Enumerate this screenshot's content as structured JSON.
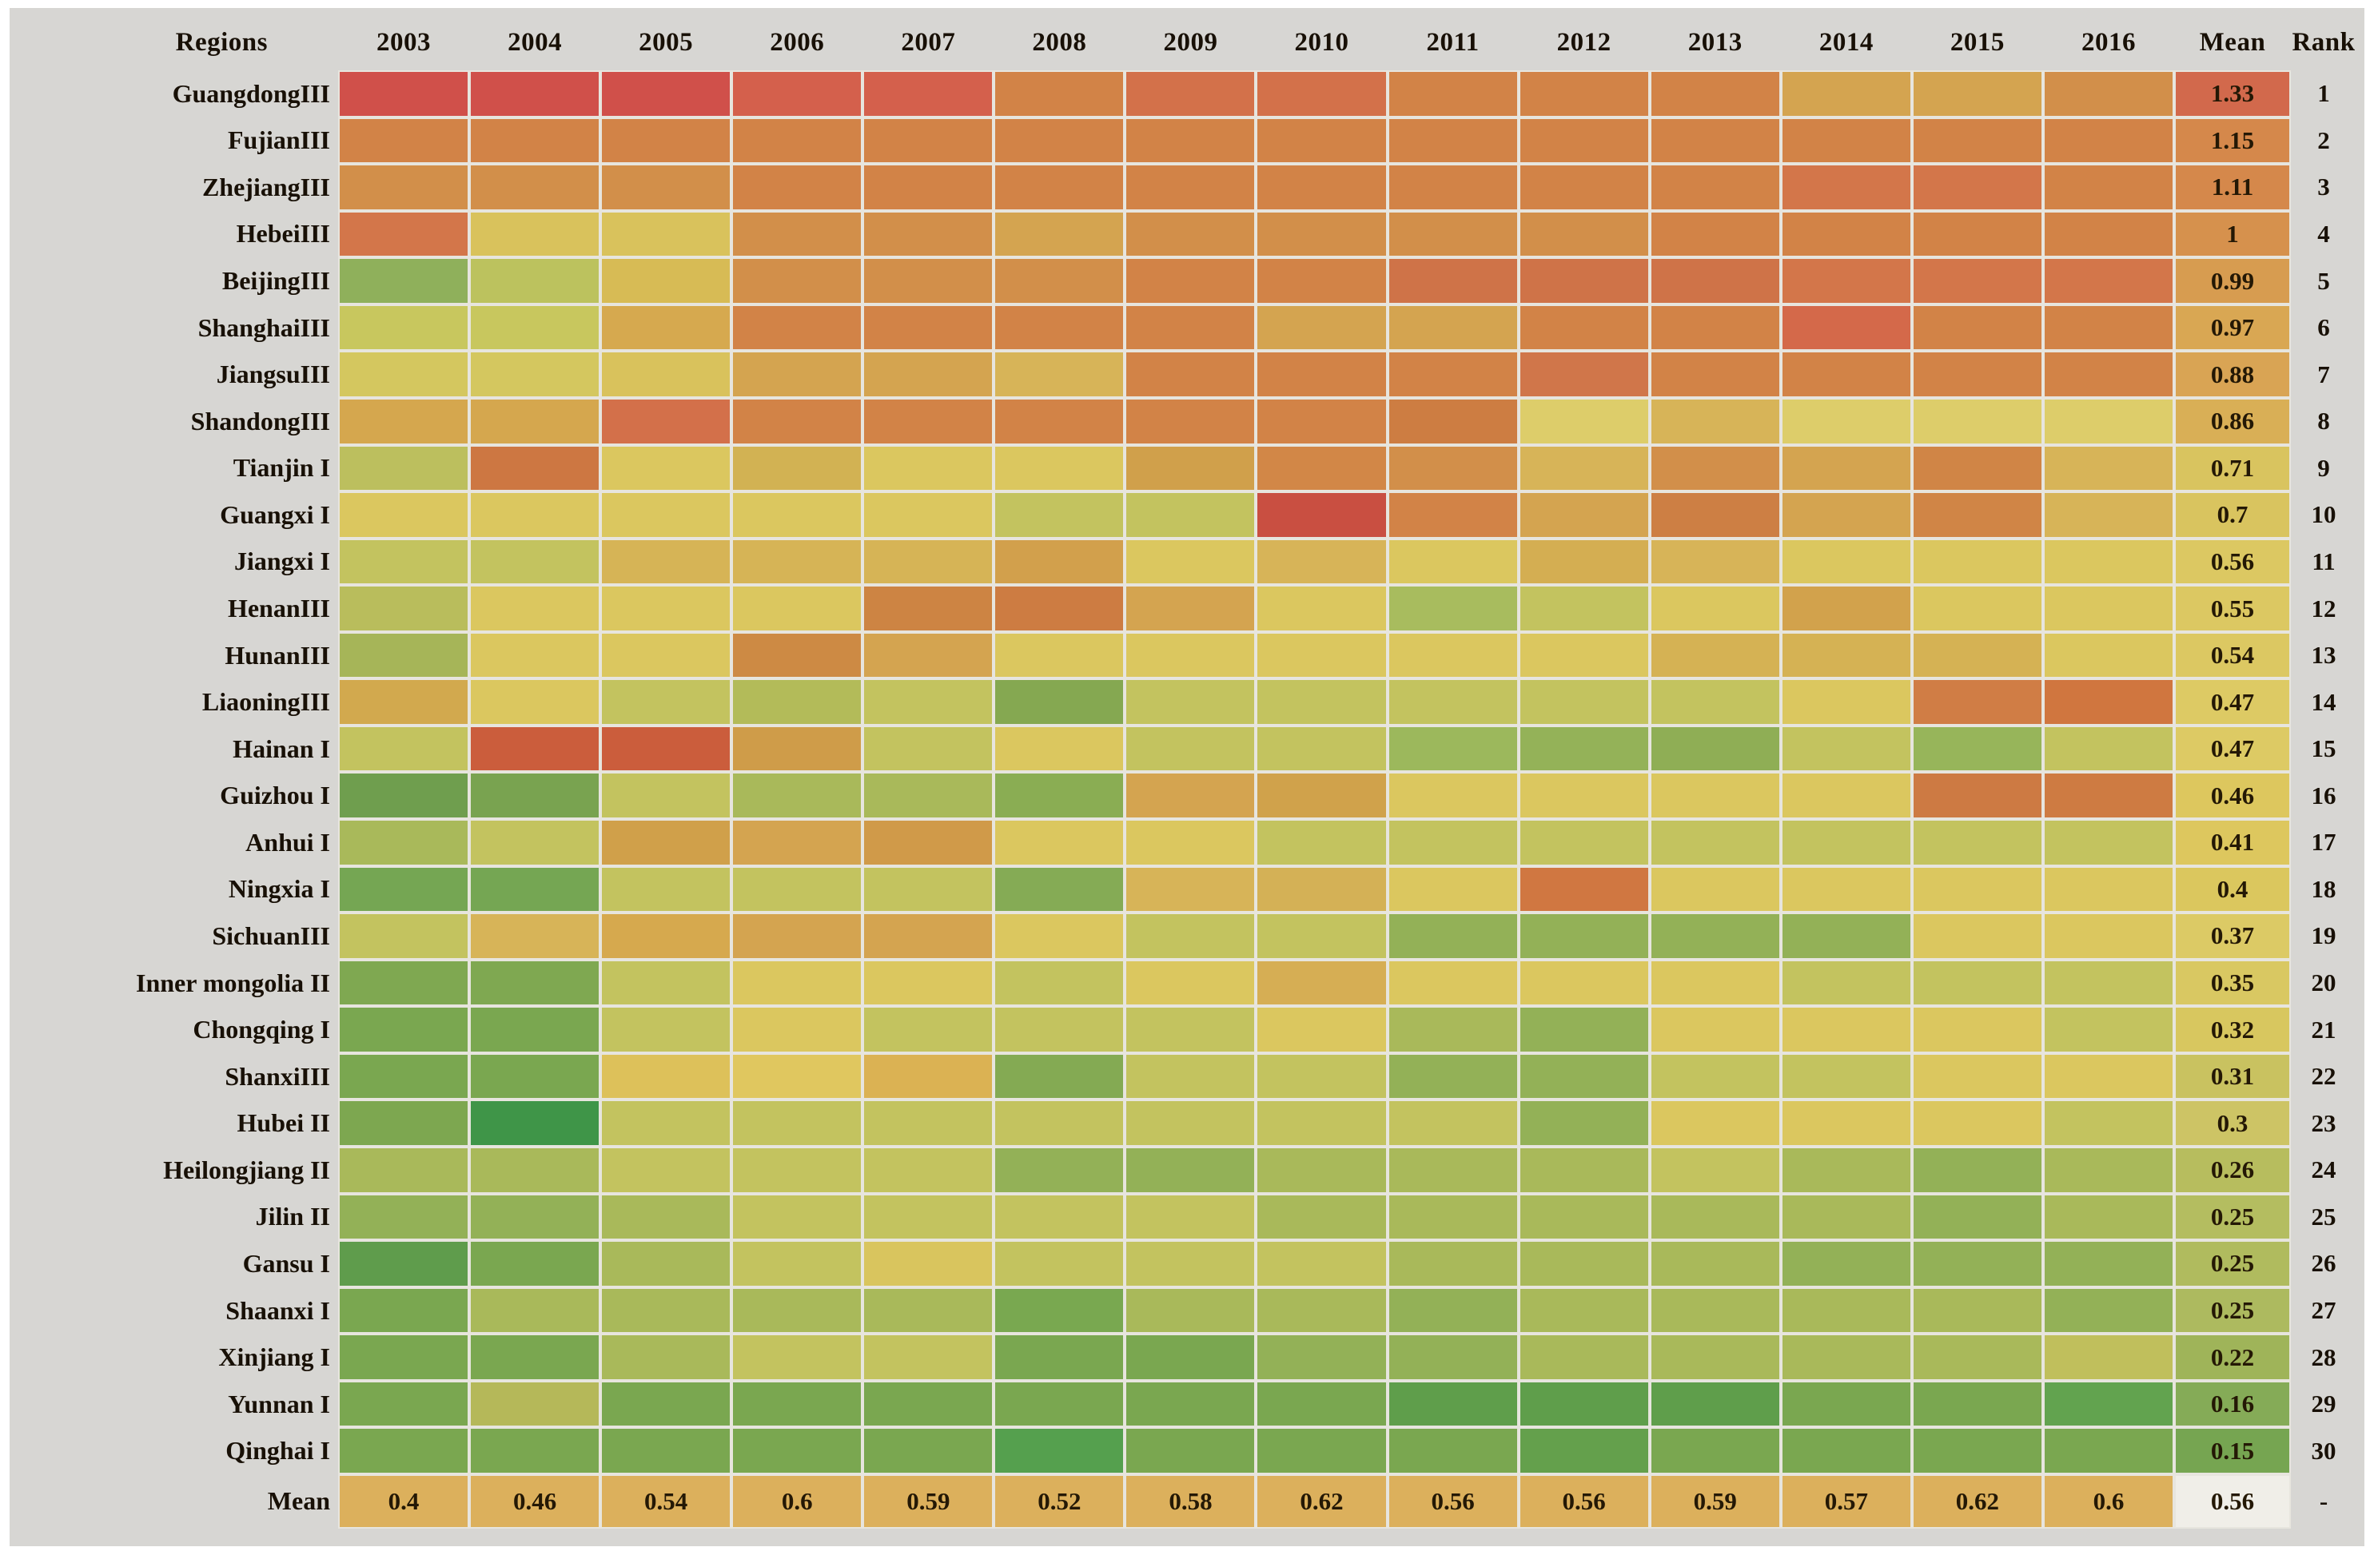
{
  "panel": {
    "page_background": "#ffffff",
    "panel_background": "#d7d6d3",
    "gridline_color": "#e7e5de",
    "text_color": "#181006"
  },
  "chart_data": {
    "type": "heatmap",
    "title": "",
    "description": "Ranked heatmap of regional mean index values per year; cell color encodes magnitude from green (low) to yellow (mid) to red (high). Only row/column means are printed as numbers.",
    "legend_position": "none",
    "grid": true,
    "color_scale": {
      "low": "#3f9548",
      "mid": "#dbc75f",
      "high": "#c94f41"
    },
    "header": {
      "region": "Regions",
      "years": [
        "2003",
        "2004",
        "2005",
        "2006",
        "2007",
        "2008",
        "2009",
        "2010",
        "2011",
        "2012",
        "2013",
        "2014",
        "2015",
        "2016"
      ],
      "mean": "Mean",
      "rank": "Rank"
    },
    "rows": [
      {
        "region": "GuangdongIII",
        "mean": "1.33",
        "rank": "1",
        "mean_color": "#d2694c",
        "colors": [
          "#d0504a",
          "#d0504a",
          "#d0504a",
          "#d4604c",
          "#d4604c",
          "#d28347",
          "#d3714a",
          "#d3714a",
          "#d28347",
          "#d28347",
          "#d28347",
          "#d4a450",
          "#d4a450",
          "#d28f4a"
        ]
      },
      {
        "region": "FujianIII",
        "mean": "1.15",
        "rank": "2",
        "mean_color": "#d5884b",
        "colors": [
          "#d28347",
          "#d28347",
          "#d28347",
          "#d28347",
          "#d28347",
          "#d28347",
          "#d28347",
          "#d28347",
          "#d28347",
          "#d28347",
          "#d28347",
          "#d28347",
          "#d28347",
          "#d28347"
        ]
      },
      {
        "region": "ZhejiangIII",
        "mean": "1.11",
        "rank": "3",
        "mean_color": "#d5884b",
        "colors": [
          "#d28f4a",
          "#d28f4a",
          "#d28f4a",
          "#d28347",
          "#d28347",
          "#d28347",
          "#d28347",
          "#d28347",
          "#d28347",
          "#d28347",
          "#d28347",
          "#d3764a",
          "#d3764a",
          "#d28347"
        ]
      },
      {
        "region": "HebeiIII",
        "mean": "1",
        "rank": "4",
        "mean_color": "#d6914d",
        "colors": [
          "#d3764a",
          "#d9c25c",
          "#d9c25c",
          "#d28f4a",
          "#d28f4a",
          "#d4a450",
          "#d28f4a",
          "#d28f4a",
          "#d28f4a",
          "#d28f4a",
          "#d28347",
          "#d28347",
          "#d28347",
          "#d28347"
        ]
      },
      {
        "region": "BeijingIII",
        "mean": "0.99",
        "rank": "5",
        "mean_color": "#d79c50",
        "colors": [
          "#8fb05b",
          "#bcc25e",
          "#d7bb55",
          "#d28f4a",
          "#d28f4a",
          "#d28f4a",
          "#d28347",
          "#d28347",
          "#cf7348",
          "#cf7348",
          "#cf7348",
          "#d3764a",
          "#d3764a",
          "#d3764a"
        ]
      },
      {
        "region": "ShanghaiIII",
        "mean": "0.97",
        "rank": "6",
        "mean_color": "#d9a753",
        "colors": [
          "#c8c75e",
          "#c8c75e",
          "#d6a94f",
          "#d28347",
          "#d28347",
          "#d28347",
          "#d28347",
          "#d4a450",
          "#d4a450",
          "#d28347",
          "#d28347",
          "#d4694a",
          "#d28347",
          "#d28347"
        ]
      },
      {
        "region": "JiangsuIII",
        "mean": "0.88",
        "rank": "7",
        "mean_color": "#d9a454",
        "colors": [
          "#d4c75f",
          "#d4c75f",
          "#d9c25c",
          "#d4a450",
          "#d4a450",
          "#d7b458",
          "#d28347",
          "#d28347",
          "#d28347",
          "#d0764a",
          "#d28347",
          "#d28347",
          "#d28347",
          "#d28347"
        ]
      },
      {
        "region": "ShandongIII",
        "mean": "0.86",
        "rank": "8",
        "mean_color": "#d9af56",
        "colors": [
          "#d5a74e",
          "#d5a74e",
          "#d3704a",
          "#d28347",
          "#d28347",
          "#d28347",
          "#d28347",
          "#d28347",
          "#cd7d42",
          "#ddcd6a",
          "#d7b458",
          "#ddcd6a",
          "#ddcd6a",
          "#ddcd6a"
        ]
      },
      {
        "region": "Tianjin I",
        "mean": "0.71",
        "rank": "9",
        "mean_color": "#d9c45f",
        "colors": [
          "#bcbf5e",
          "#cd7742",
          "#dbc75f",
          "#d2b253",
          "#dbc75f",
          "#dbc75f",
          "#d0a04b",
          "#d28747",
          "#d28f4a",
          "#d7b458",
          "#d28f4a",
          "#d4a450",
          "#d08546",
          "#d7b458"
        ]
      },
      {
        "region": "Guangxi I",
        "mean": "0.7",
        "rank": "10",
        "mean_color": "#d9c45f",
        "colors": [
          "#dbc75f",
          "#dbc75f",
          "#dbc75f",
          "#dbc75f",
          "#dbc75f",
          "#c3c35f",
          "#c3c35f",
          "#c94f41",
          "#d28347",
          "#d4a450",
          "#cd7f44",
          "#d4a450",
          "#d08546",
          "#d7b458"
        ]
      },
      {
        "region": "Jiangxi I",
        "mean": "0.56",
        "rank": "11",
        "mean_color": "#dcc862",
        "colors": [
          "#c3c35f",
          "#c3c35f",
          "#d6b456",
          "#d6b456",
          "#d6b456",
          "#d2a04c",
          "#dbc75f",
          "#d7b458",
          "#dbc75f",
          "#d4ae52",
          "#d7b458",
          "#dbc75f",
          "#dbc75f",
          "#dbc75f"
        ]
      },
      {
        "region": "HenanIII",
        "mean": "0.55",
        "rank": "12",
        "mean_color": "#dcc862",
        "colors": [
          "#b9bd5c",
          "#dbc75f",
          "#dbc75f",
          "#dbc75f",
          "#cd8443",
          "#cd7c42",
          "#d4a450",
          "#dbc75f",
          "#a8bc5e",
          "#c3c35f",
          "#dbc75f",
          "#d2a24c",
          "#dbc75f",
          "#dbc75f"
        ]
      },
      {
        "region": "HunanIII",
        "mean": "0.54",
        "rank": "13",
        "mean_color": "#dcc862",
        "colors": [
          "#a6b558",
          "#dbc75f",
          "#dbc75f",
          "#cd8a44",
          "#d4a450",
          "#dbc75f",
          "#dbc75f",
          "#dbc75f",
          "#dbc75f",
          "#dbc75f",
          "#d5b254",
          "#d5b254",
          "#d5b254",
          "#dbc75f"
        ]
      },
      {
        "region": "LiaoningIII",
        "mean": "0.47",
        "rank": "14",
        "mean_color": "#ddca64",
        "colors": [
          "#d2a94e",
          "#dbc75f",
          "#c3c35f",
          "#b3bb59",
          "#c3c35f",
          "#85a851",
          "#c3c35f",
          "#c3c35f",
          "#c3c35f",
          "#c3c35f",
          "#c3c35f",
          "#dbc75f",
          "#d07d45",
          "#d0763f"
        ]
      },
      {
        "region": "Hainan I",
        "mean": "0.47",
        "rank": "15",
        "mean_color": "#ddca64",
        "colors": [
          "#c3c35f",
          "#cb5d3c",
          "#cb5d3c",
          "#cf9c49",
          "#c3c35f",
          "#dbc75f",
          "#c3c35f",
          "#c3c35f",
          "#9cb85c",
          "#94b258",
          "#8fae55",
          "#c3c35f",
          "#97b55a",
          "#c3c35f"
        ]
      },
      {
        "region": "Guizhou I",
        "mean": "0.46",
        "rank": "16",
        "mean_color": "#ddc75e",
        "colors": [
          "#6f9e4e",
          "#79a350",
          "#c3c35f",
          "#a9b95a",
          "#a9b95a",
          "#8aad53",
          "#d4a450",
          "#d0a24b",
          "#dbc75f",
          "#dbc75f",
          "#dbc75f",
          "#dbc75f",
          "#cd7a43",
          "#ce7b42"
        ]
      },
      {
        "region": "Anhui I",
        "mean": "0.41",
        "rank": "17",
        "mean_color": "#ddc75e",
        "colors": [
          "#a9b95a",
          "#c3c35f",
          "#d0a04a",
          "#d4a450",
          "#d09a49",
          "#dbc75f",
          "#dbc75f",
          "#c3c35f",
          "#c3c35f",
          "#c3c35f",
          "#c3c35f",
          "#c3c35f",
          "#c3c35f",
          "#c3c35f"
        ]
      },
      {
        "region": "Ningxia I",
        "mean": "0.4",
        "rank": "18",
        "mean_color": "#dbc75e",
        "colors": [
          "#75a653",
          "#75a653",
          "#c3c35f",
          "#c3c35f",
          "#c3c35f",
          "#85ab55",
          "#d7b458",
          "#d4b156",
          "#dbc75f",
          "#d07741",
          "#dbc75f",
          "#dbc75f",
          "#dbc75f",
          "#dbc75f"
        ]
      },
      {
        "region": "SichuanIII",
        "mean": "0.37",
        "rank": "19",
        "mean_color": "#dcca65",
        "colors": [
          "#c3c35f",
          "#d7b458",
          "#d6a94e",
          "#d4a450",
          "#d4a450",
          "#dbc75f",
          "#c3c35f",
          "#c3c35f",
          "#93b157",
          "#93b157",
          "#93b157",
          "#93b157",
          "#dbc75f",
          "#dbc75f"
        ]
      },
      {
        "region": "Inner mongolia II",
        "mean": "0.35",
        "rank": "20",
        "mean_color": "#d9c862",
        "colors": [
          "#7fa851",
          "#7fa851",
          "#c3c35f",
          "#dbc75f",
          "#dbc75f",
          "#c3c35f",
          "#dbc75f",
          "#d6ae54",
          "#dbc75f",
          "#dbc75f",
          "#dbc75f",
          "#c3c35f",
          "#c3c35f",
          "#c3c35f"
        ]
      },
      {
        "region": "Chongqing I",
        "mean": "0.32",
        "rank": "21",
        "mean_color": "#d8c75f",
        "colors": [
          "#7aa750",
          "#7aa750",
          "#c3c35f",
          "#dbc75f",
          "#c3c35f",
          "#c3c35f",
          "#c3c35f",
          "#dbc75f",
          "#a9b95a",
          "#93b157",
          "#dbc75f",
          "#dbc75f",
          "#dbc75f",
          "#c3c35f"
        ]
      },
      {
        "region": "ShanxiIII",
        "mean": "0.31",
        "rank": "22",
        "mean_color": "#c9c260",
        "colors": [
          "#7aa750",
          "#7aa750",
          "#ddc15a",
          "#e0c75f",
          "#dbb253",
          "#84aa53",
          "#c3c35f",
          "#c3c35f",
          "#93b157",
          "#93b157",
          "#c3c35f",
          "#c3c35f",
          "#dbc75f",
          "#dbc75f"
        ]
      },
      {
        "region": "Hubei II",
        "mean": "0.3",
        "rank": "23",
        "mean_color": "#cdc465",
        "colors": [
          "#7da750",
          "#3f9548",
          "#c3c35f",
          "#c3c35f",
          "#c3c35f",
          "#c3c35f",
          "#c3c35f",
          "#c3c35f",
          "#c3c35f",
          "#93b157",
          "#dbc75f",
          "#dbc75f",
          "#dbc75f",
          "#c3c35f"
        ]
      },
      {
        "region": "Heilongjiang II",
        "mean": "0.26",
        "rank": "24",
        "mean_color": "#b7bd5e",
        "colors": [
          "#a9b95a",
          "#a9b95a",
          "#c3c35f",
          "#c3c35f",
          "#c3c35f",
          "#93b157",
          "#93b157",
          "#a9b95a",
          "#a9b95a",
          "#a9b95a",
          "#c3c35f",
          "#a9b95a",
          "#93b157",
          "#a9b95a"
        ]
      },
      {
        "region": "Jilin II",
        "mean": "0.25",
        "rank": "25",
        "mean_color": "#b4bd60",
        "colors": [
          "#93b157",
          "#93b157",
          "#a9b95a",
          "#c3c35f",
          "#c3c35f",
          "#c3c35f",
          "#c3c35f",
          "#a9b95a",
          "#a9b95a",
          "#a9b95a",
          "#a9b95a",
          "#a9b95a",
          "#93b157",
          "#a9b95a"
        ]
      },
      {
        "region": "Gansu I",
        "mean": "0.25",
        "rank": "26",
        "mean_color": "#b0bb5e",
        "colors": [
          "#5f9c4c",
          "#7aa750",
          "#a9b95a",
          "#c3c35f",
          "#d9c55e",
          "#c3c35f",
          "#c3c35f",
          "#c3c35f",
          "#a9b95a",
          "#a9b95a",
          "#a9b95a",
          "#93b157",
          "#93b157",
          "#93b157"
        ]
      },
      {
        "region": "Shaanxi I",
        "mean": "0.25",
        "rank": "27",
        "mean_color": "#adba5f",
        "colors": [
          "#7aa750",
          "#a9b95a",
          "#a9b95a",
          "#a9b95a",
          "#a9b95a",
          "#79a850",
          "#a9b95a",
          "#a9b95a",
          "#93b157",
          "#a9b95a",
          "#a9b95a",
          "#a9b95a",
          "#a9b95a",
          "#93b157"
        ]
      },
      {
        "region": "Xinjiang I",
        "mean": "0.22",
        "rank": "28",
        "mean_color": "#9fb459",
        "colors": [
          "#7aa750",
          "#7aa750",
          "#a9b95a",
          "#c3c35f",
          "#c3c35f",
          "#7aa750",
          "#7aa750",
          "#93b157",
          "#93b157",
          "#a9b95a",
          "#a9b95a",
          "#a9b95a",
          "#a9b95a",
          "#c0bf5c"
        ]
      },
      {
        "region": "Yunnan I",
        "mean": "0.16",
        "rank": "29",
        "mean_color": "#85ab57",
        "colors": [
          "#7aa750",
          "#b5b859",
          "#7aa750",
          "#7aa750",
          "#7aa750",
          "#7aa750",
          "#7aa750",
          "#7aa750",
          "#5f9e4b",
          "#5f9e4b",
          "#5f9e4b",
          "#7aa750",
          "#7aa750",
          "#62a34f"
        ]
      },
      {
        "region": "Qinghai I",
        "mean": "0.15",
        "rank": "30",
        "mean_color": "#76a551",
        "colors": [
          "#7aa750",
          "#7aa750",
          "#7aa750",
          "#7aa750",
          "#7aa750",
          "#55a04e",
          "#7aa750",
          "#7aa750",
          "#7aa750",
          "#64a04c",
          "#7aa750",
          "#7aa750",
          "#7aa750",
          "#7aa750"
        ]
      }
    ],
    "footer": {
      "label": "Mean",
      "values": [
        "0.4",
        "0.46",
        "0.54",
        "0.6",
        "0.59",
        "0.52",
        "0.58",
        "0.62",
        "0.56",
        "0.56",
        "0.59",
        "0.57",
        "0.62",
        "0.6"
      ],
      "cell_color": "#dcb05c",
      "mean": "0.56",
      "mean_cell_color": "#f0eee8",
      "rank": "-"
    }
  }
}
